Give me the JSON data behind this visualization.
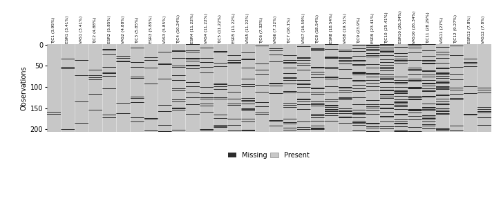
{
  "variables": [
    "TJC1 (3.95%)",
    "ESR1 (3.41%)",
    "VAS1 (3.41%)",
    "TJC2 (4.88%)",
    "ESR2 (5.85%)",
    "VAS2 (4.88%)",
    "TJC3 (5.85%)",
    "ESR3 (5.85%)",
    "VAS3 (5.85%)",
    "TJC4 (10.24%)",
    "ESR4 (11.22%)",
    "VAS4 (11.22%)",
    "TJC5 (11.22%)",
    "ESR5 (11.22%)",
    "VAS5 (11.22%)",
    "TJC6 (7.32%)",
    "VAS6 (7.32%)",
    "TJC7 (16.1%)",
    "VAS7 (16.59%)",
    "TJC8 (18.54%)",
    "ESR8 (18.54%)",
    "VAS8 (19.51%)",
    "TJC9 (23.9%)",
    "ESR9 (23.41%)",
    "TJC10 (25.41%)",
    "ESR10 (26.34%)",
    "VAS10 (26.34%)",
    "TJC11 (28.29%)",
    "VAS11 (27%)",
    "TJC12 (9.27%)",
    "ESR12 (7.8%)",
    "VAS12 (7.8%)"
  ],
  "n_obs": 205,
  "missing_color": "#2c2c2c",
  "present_color": "#c8c8c8",
  "ylabel": "Observations",
  "missing_pct": [
    0.0395,
    0.0341,
    0.0341,
    0.0488,
    0.0585,
    0.0488,
    0.0585,
    0.0585,
    0.0585,
    0.1024,
    0.1122,
    0.1122,
    0.1122,
    0.1122,
    0.1122,
    0.0732,
    0.0732,
    0.161,
    0.1659,
    0.1854,
    0.1854,
    0.1951,
    0.239,
    0.2341,
    0.2541,
    0.2634,
    0.2634,
    0.2829,
    0.27,
    0.0927,
    0.078,
    0.078
  ]
}
